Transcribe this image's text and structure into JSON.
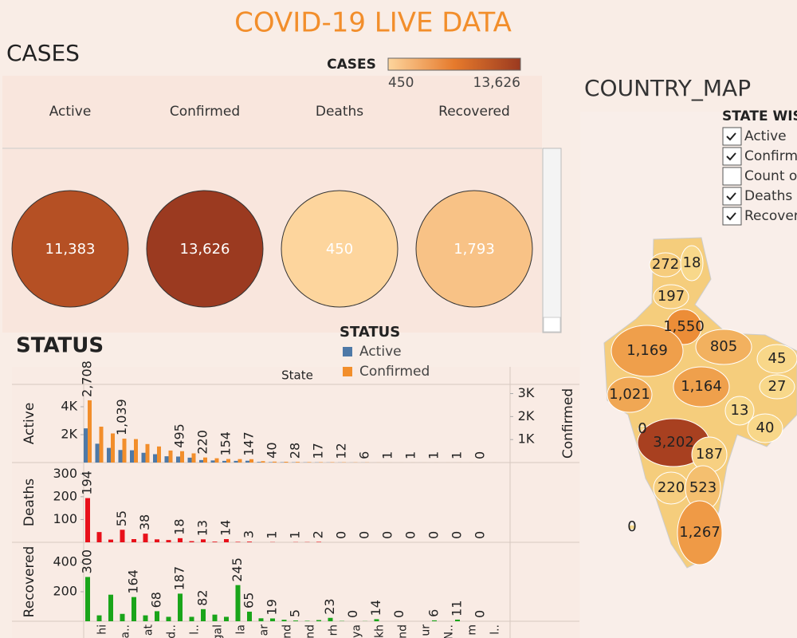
{
  "title": "COVID-19 LIVE DATA",
  "chart_data": [
    {
      "type": "bubble",
      "title": "CASES",
      "legend_title": "CASES",
      "categories": [
        "Active",
        "Confirmed",
        "Deaths",
        "Recovered"
      ],
      "values": [
        11383,
        13626,
        450,
        1793
      ],
      "value_labels": [
        "11,383",
        "13,626",
        "450",
        "1,793"
      ],
      "color_lim": [
        450,
        13626
      ],
      "color_ticks": [
        450,
        {
          "value": 13626,
          "label": "13,626"
        }
      ],
      "colors": [
        "#fdd59d",
        "#e67a2c",
        "#9b3a20"
      ]
    },
    {
      "type": "map",
      "title": "COUNTRY_MAP",
      "filter_title": "STATE WISE",
      "filters": [
        {
          "label": "Active",
          "checked": true
        },
        {
          "label": "Confirmed",
          "checked": true
        },
        {
          "label": "Count of",
          "checked": false
        },
        {
          "label": "Deaths",
          "checked": true
        },
        {
          "label": "Recovered",
          "checked": true
        }
      ],
      "values": [
        272,
        18,
        197,
        1550,
        805,
        45,
        1169,
        1164,
        27,
        1021,
        13,
        40,
        0,
        3202,
        187,
        220,
        523,
        0,
        1267
      ],
      "value_labels": [
        "272",
        "18",
        "197",
        "1,550",
        "805",
        "45",
        "1,169",
        "1,164",
        "27",
        "1,021",
        "13",
        "40",
        "0",
        "3,202",
        "187",
        "220",
        "523",
        "0",
        "1,267"
      ],
      "colors": [
        "#f8d98b",
        "#ec8a34",
        "#a84020"
      ]
    },
    {
      "type": "bar",
      "title": "STATUS",
      "legend_title": "STATUS",
      "x_label": "State",
      "categories": [
        null,
        "hi",
        null,
        "a..",
        null,
        "at",
        null,
        "d..",
        null,
        "l..",
        null,
        "gal",
        null,
        "la",
        null,
        "ar",
        null,
        "nd",
        null,
        "nd",
        null,
        "rh",
        null,
        "ya",
        null,
        "kh",
        null,
        "nd",
        null,
        "ur",
        null,
        "N..",
        null,
        "m",
        null,
        "l.."
      ],
      "panels": [
        {
          "ylim": [
            0,
            5600
          ],
          "yticks": [
            {
              "value": 2000,
              "label": "2K"
            },
            {
              "value": 4000,
              "label": "4K"
            }
          ],
          "y2lim": [
            0,
            3400
          ],
          "y2ticks": [
            {
              "value": 1000,
              "label": "1K"
            },
            {
              "value": 2000,
              "label": "2K"
            },
            {
              "value": 3000,
              "label": "3K"
            }
          ],
          "series": [
            {
              "name": "Active",
              "color": "#4e79a7",
              "values": [
                2450,
                1350,
                1050,
                900,
                880,
                700,
                600,
                450,
                430,
                350,
                180,
                150,
                120,
                120,
                130,
                45,
                30,
                25,
                20,
                15,
                12,
                10,
                9,
                5,
                4,
                1,
                1,
                0,
                0,
                1,
                0,
                0,
                1,
                0,
                0,
                0
              ]
            },
            {
              "name": "Confirmed",
              "color": "#f28e2b",
              "axis": "y2",
              "values": [
                2708,
                1561,
                1267,
                1039,
                1021,
                805,
                700,
                523,
                495,
                400,
                220,
                187,
                154,
                150,
                147,
                60,
                40,
                35,
                28,
                20,
                17,
                15,
                12,
                8,
                6,
                2,
                1,
                1,
                1,
                1,
                1,
                1,
                1,
                1,
                0,
                1
              ],
              "value_labels": [
                "2,708",
                null,
                null,
                "1,039",
                null,
                null,
                null,
                null,
                "495",
                null,
                "220",
                null,
                "154",
                null,
                "147",
                null,
                "40",
                null,
                "28",
                null,
                "17",
                null,
                "12",
                null,
                "6",
                null,
                "1",
                null,
                "1",
                null,
                "1",
                null,
                "1",
                null,
                "0",
                null
              ]
            }
          ]
        },
        {
          "ylim": [
            0,
            350
          ],
          "yticks": [
            100,
            200,
            300
          ],
          "series": [
            {
              "name": "Deaths",
              "color": "#e8101a",
              "values": [
                194,
                45,
                12,
                55,
                14,
                38,
                13,
                10,
                18,
                5,
                13,
                3,
                14,
                2,
                3,
                0,
                1,
                0,
                1,
                1,
                2,
                0,
                0,
                0,
                0,
                0,
                0,
                0,
                0,
                0,
                0,
                0,
                0,
                0,
                0,
                0
              ],
              "value_labels": [
                "194",
                null,
                null,
                "55",
                null,
                "38",
                null,
                null,
                "18",
                null,
                "13",
                null,
                "14",
                null,
                "3",
                null,
                "1",
                null,
                "1",
                null,
                "2",
                null,
                "0",
                null,
                "0",
                null,
                "0",
                null,
                "0",
                null,
                "0",
                null,
                "0",
                null,
                "0",
                null
              ]
            }
          ]
        },
        {
          "ylim": [
            0,
            535
          ],
          "yticks": [
            200,
            400
          ],
          "series": [
            {
              "name": "Recovered",
              "color": "#1aa51a",
              "values": [
                300,
                40,
                180,
                50,
                164,
                40,
                68,
                30,
                187,
                30,
                82,
                45,
                30,
                245,
                65,
                20,
                19,
                10,
                5,
                3,
                8,
                23,
                2,
                0,
                1,
                14,
                0,
                0,
                0,
                0,
                6,
                0,
                11,
                0,
                0,
                0
              ],
              "value_labels": [
                "300",
                null,
                null,
                null,
                "164",
                null,
                "68",
                null,
                "187",
                null,
                "82",
                null,
                null,
                "245",
                "65",
                null,
                "19",
                null,
                "5",
                null,
                null,
                "23",
                null,
                "0",
                null,
                "14",
                null,
                "0",
                null,
                null,
                "6",
                null,
                "11",
                null,
                "0",
                null
              ]
            }
          ]
        }
      ]
    }
  ]
}
